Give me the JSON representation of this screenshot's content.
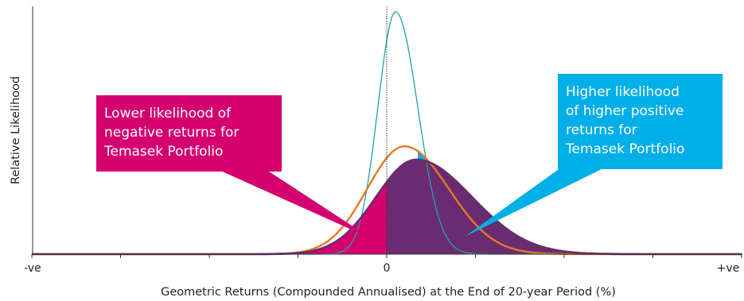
{
  "chart_data": {
    "type": "line",
    "title": "",
    "xlabel": "Geometric Returns (Compounded Annualised) at the End of 20-year Period (%)",
    "ylabel": "Relative Likelihood",
    "xlim": [
      -4,
      4
    ],
    "ylim": [
      0,
      1
    ],
    "x_tick_labels": {
      "left": "-ve",
      "zero": "0",
      "right": "+ve"
    },
    "grid": false,
    "legend": "none",
    "series": [
      {
        "color": "#1fa3a3",
        "peak_x": 0.1,
        "peak_y": 1.0,
        "sigma_left": 0.2,
        "sigma_right": 0.25
      },
      {
        "color": "#e87722",
        "peak_x": 0.2,
        "peak_y": 0.445,
        "sigma_left": 0.42,
        "sigma_right": 0.5
      },
      {
        "color": "#6a2c70",
        "peak_x": 0.33,
        "peak_y": 0.39,
        "sigma_left": 0.45,
        "sigma_right": 0.63
      }
    ],
    "annotations": [
      {
        "text_lines": [
          "Lower likelihood of",
          "negative returns for",
          "Temasek Portfolio"
        ],
        "color": "#d4006f",
        "side": "left"
      },
      {
        "text_lines": [
          "Higher likelihood",
          "of higher positive",
          "returns for",
          "Temasek Portfolio"
        ],
        "color": "#00aee8",
        "side": "right"
      }
    ]
  }
}
